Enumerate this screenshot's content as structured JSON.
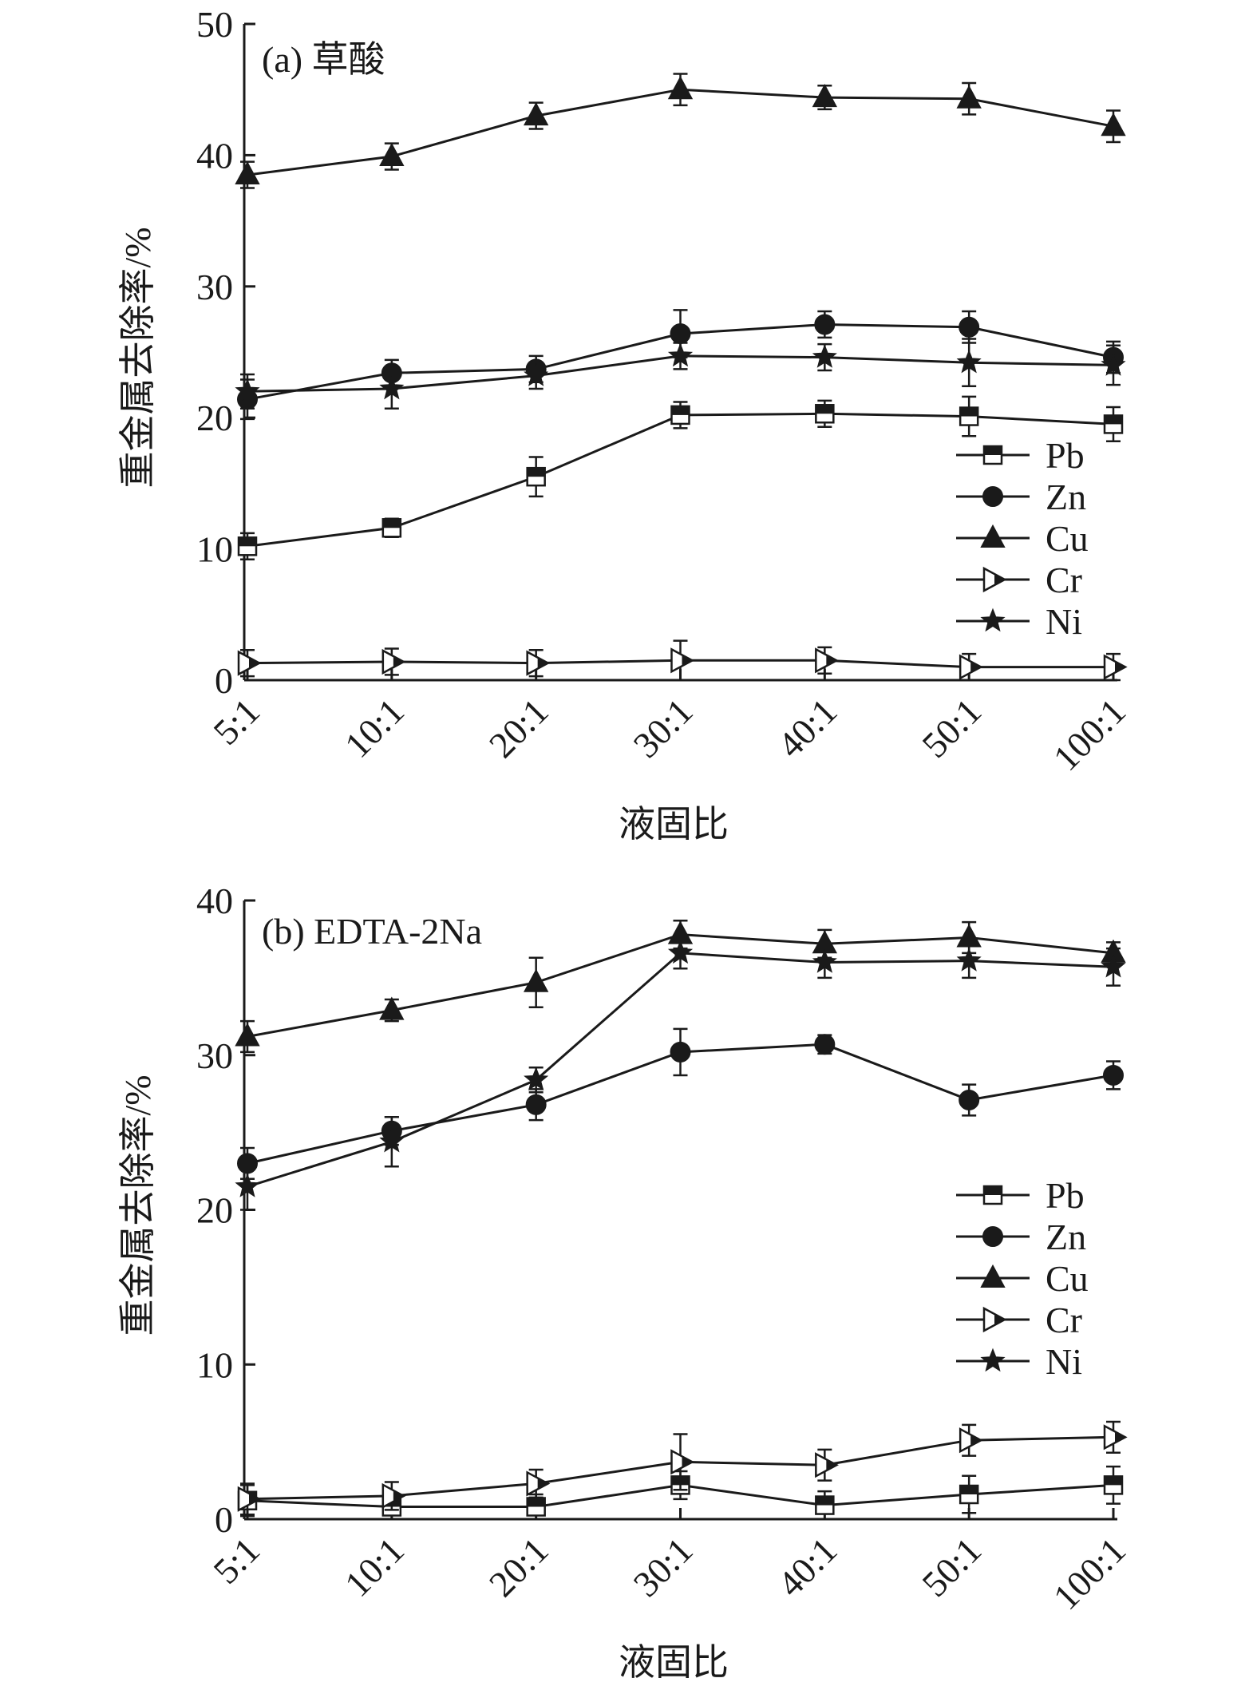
{
  "chart_data": [
    {
      "type": "line",
      "panel_label": "(a) 草酸",
      "xlabel": "液固比",
      "ylabel": "重金属去除率/%",
      "categories": [
        "5:1",
        "10:1",
        "20:1",
        "30:1",
        "40:1",
        "50:1",
        "100:1"
      ],
      "ylim": [
        0,
        50
      ],
      "yticks": [
        0,
        10,
        20,
        30,
        40,
        50
      ],
      "legend_position": "right-middle",
      "grid": false,
      "series": [
        {
          "name": "Pb",
          "marker": "square-half",
          "values": [
            10.2,
            11.6,
            15.5,
            20.2,
            20.3,
            20.1,
            19.5
          ],
          "errors": [
            1.0,
            0.7,
            1.5,
            1.0,
            1.0,
            1.5,
            1.3
          ]
        },
        {
          "name": "Zn",
          "marker": "circle",
          "values": [
            21.4,
            23.4,
            23.7,
            26.4,
            27.1,
            26.9,
            24.6
          ],
          "errors": [
            1.5,
            1.0,
            1.0,
            1.8,
            1.0,
            1.2,
            1.2
          ]
        },
        {
          "name": "Cu",
          "marker": "triangle",
          "values": [
            38.5,
            39.9,
            43.0,
            45.0,
            44.4,
            44.3,
            42.2
          ],
          "errors": [
            1.0,
            1.0,
            1.0,
            1.2,
            0.9,
            1.2,
            1.2
          ]
        },
        {
          "name": "Cr",
          "marker": "triangle-right-half",
          "values": [
            1.3,
            1.4,
            1.3,
            1.5,
            1.5,
            1.0,
            1.0
          ],
          "errors": [
            1.0,
            1.0,
            1.0,
            1.5,
            1.0,
            1.0,
            1.0
          ]
        },
        {
          "name": "Ni",
          "marker": "star",
          "values": [
            22.0,
            22.2,
            23.2,
            24.7,
            24.6,
            24.2,
            24.0
          ],
          "errors": [
            1.3,
            1.5,
            1.0,
            1.0,
            1.0,
            1.8,
            1.5
          ]
        }
      ]
    },
    {
      "type": "line",
      "panel_label": "(b) EDTA-2Na",
      "xlabel": "液固比",
      "ylabel": "重金属去除率/%",
      "categories": [
        "5:1",
        "10:1",
        "20:1",
        "30:1",
        "40:1",
        "50:1",
        "100:1"
      ],
      "ylim": [
        0,
        40
      ],
      "yticks": [
        0,
        10,
        20,
        30,
        40
      ],
      "legend_position": "right-middle",
      "grid": false,
      "series": [
        {
          "name": "Pb",
          "marker": "square-half",
          "values": [
            1.2,
            0.8,
            0.8,
            2.2,
            0.9,
            1.6,
            2.2
          ],
          "errors": [
            1.0,
            0.8,
            0.8,
            0.9,
            0.9,
            1.2,
            1.2
          ]
        },
        {
          "name": "Zn",
          "marker": "circle",
          "values": [
            23.0,
            25.1,
            26.8,
            30.2,
            30.7,
            27.1,
            28.7
          ],
          "errors": [
            1.0,
            0.9,
            1.0,
            1.5,
            0.6,
            1.0,
            0.9
          ]
        },
        {
          "name": "Cu",
          "marker": "triangle",
          "values": [
            31.2,
            32.9,
            34.7,
            37.8,
            37.2,
            37.6,
            36.6
          ],
          "errors": [
            1.0,
            0.7,
            1.6,
            0.9,
            0.9,
            1.0,
            0.7
          ]
        },
        {
          "name": "Cr",
          "marker": "triangle-right-half",
          "values": [
            1.3,
            1.5,
            2.3,
            3.7,
            3.5,
            5.1,
            5.3
          ],
          "errors": [
            1.0,
            0.9,
            0.9,
            1.8,
            1.0,
            1.0,
            1.0
          ]
        },
        {
          "name": "Ni",
          "marker": "star",
          "values": [
            21.5,
            24.4,
            28.4,
            36.6,
            36.0,
            36.1,
            35.7
          ],
          "errors": [
            1.5,
            1.6,
            0.8,
            1.0,
            1.0,
            1.1,
            1.2
          ]
        }
      ]
    }
  ],
  "colors": {
    "ink": "#1a1a1a",
    "background": "#ffffff"
  }
}
